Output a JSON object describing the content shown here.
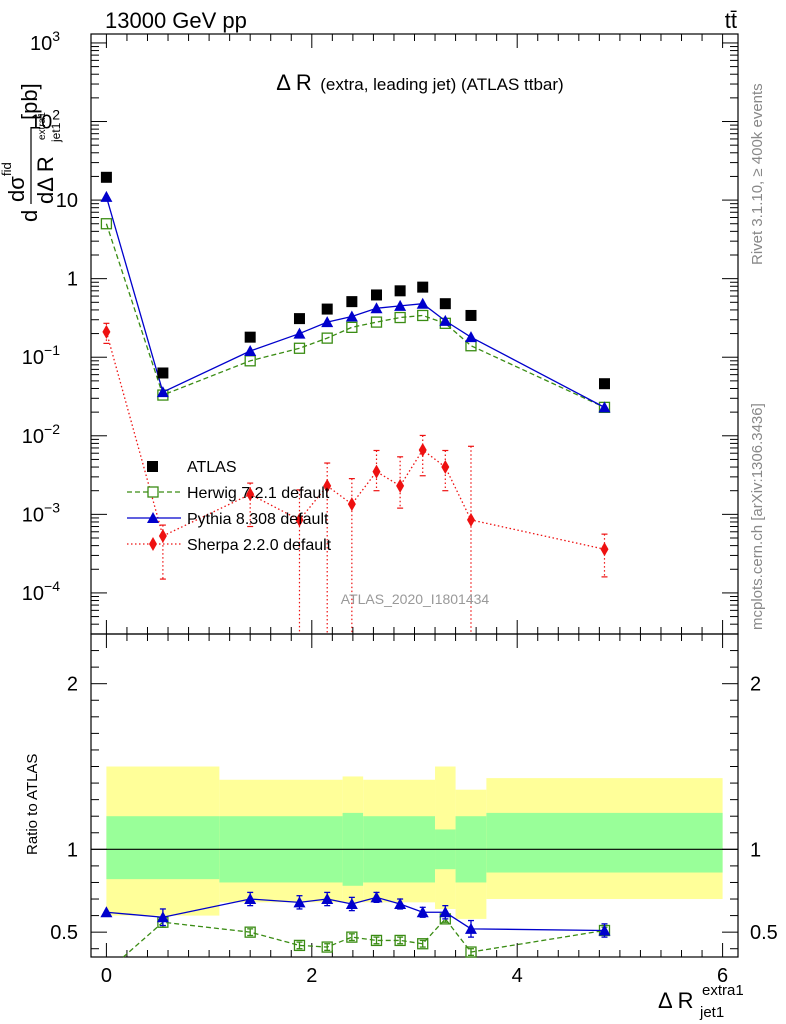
{
  "header": {
    "energy_label": "13000 GeV pp",
    "process_label": "tt̄"
  },
  "main_panel": {
    "title_main": "Δ R",
    "title_detail": "(extra, leading jet) (ATLAS ttbar)",
    "ylabel": "dσ^fid / dΔ R_jet1^extra1 [pb]",
    "ylabel_parts": {
      "d1": "d",
      "sigma": "dσ",
      "sigma_sup": "fid",
      "d2": "dΔ R",
      "sub": "jet1",
      "sup": "extra1",
      "unit": "[pb]"
    },
    "analysis_label": "ATLAS_2020_I1801434",
    "side_label_top": "Rivet 3.1.10, ≥ 400k events",
    "side_label_bottom": "mcplots.cern.ch [arXiv:1306.3436]"
  },
  "ratio_panel": {
    "ylabel": "Ratio to ATLAS"
  },
  "xaxis": {
    "label_main": "Δ R",
    "label_sub": "jet1",
    "label_sup": "extra1"
  },
  "legend": {
    "placement": "lower-left",
    "entries": [
      "ATLAS",
      "Herwig 7.2.1 default",
      "Pythia 8.308 default",
      "Sherpa 2.2.0 default"
    ]
  },
  "colors": {
    "data": "#000000",
    "herwig": "#3a8c13",
    "pythia": "#0000cc",
    "sherpa": "#ee1111",
    "band_inner": "#99ff99",
    "band_outer": "#ffff99",
    "analysis_label": "#999999",
    "side_label": "#888888"
  },
  "chart_data": {
    "type": "scatter",
    "x": [
      0.0,
      0.55,
      1.4,
      1.88,
      2.15,
      2.39,
      2.63,
      2.86,
      3.08,
      3.3,
      3.55,
      4.85
    ],
    "xlim": [
      -0.15,
      6.15
    ],
    "xticks": [
      0,
      2,
      4,
      6
    ],
    "main": {
      "yscale": "log",
      "ylim": [
        3e-05,
        1300
      ],
      "ytick_labels": [
        {
          "v": 0.0001,
          "base": "10",
          "exp": "−4"
        },
        {
          "v": 0.001,
          "base": "10",
          "exp": "−3"
        },
        {
          "v": 0.01,
          "base": "10",
          "exp": "−2"
        },
        {
          "v": 0.1,
          "base": "10",
          "exp": "−1"
        },
        {
          "v": 1,
          "base": "1",
          "exp": ""
        },
        {
          "v": 10,
          "base": "10",
          "exp": ""
        },
        {
          "v": 100,
          "base": "10",
          "exp": "2"
        },
        {
          "v": 1000,
          "base": "10",
          "exp": "3"
        }
      ],
      "series": [
        {
          "name": "ATLAS",
          "style": "square",
          "values": [
            19.5,
            0.063,
            0.18,
            0.31,
            0.41,
            0.51,
            0.62,
            0.7,
            0.78,
            0.48,
            0.34,
            0.046
          ]
        },
        {
          "name": "Herwig 7.2.1 default",
          "style": "open-square-dashed",
          "values": [
            5.0,
            0.033,
            0.09,
            0.13,
            0.175,
            0.24,
            0.28,
            0.32,
            0.34,
            0.27,
            0.14,
            0.023
          ]
        },
        {
          "name": "Pythia 8.308 default",
          "style": "triangle-solid",
          "values": [
            11.0,
            0.036,
            0.12,
            0.2,
            0.28,
            0.33,
            0.42,
            0.45,
            0.48,
            0.29,
            0.18,
            0.023
          ]
        },
        {
          "name": "Sherpa 2.2.0 default",
          "style": "diamond-dotted",
          "values": [
            0.21,
            0.00053,
            0.0018,
            0.00085,
            0.0023,
            0.00135,
            0.0035,
            0.0023,
            0.0066,
            0.004,
            0.00085,
            0.00036
          ],
          "err_lo": [
            0.06,
            0.00038,
            0.0011,
            0.00085,
            0.0023,
            0.00135,
            0.0015,
            0.0011,
            0.0035,
            0.002,
            0.00085,
            0.0002
          ],
          "err_hi": [
            0.06,
            0.0002,
            0.0007,
            0.0012,
            0.0022,
            0.0015,
            0.003,
            0.0031,
            0.0035,
            0.0025,
            0.0065,
            0.0002
          ]
        }
      ]
    },
    "ratio": {
      "yscale": "linear",
      "ylim": [
        0.35,
        2.3
      ],
      "yticks": [
        0.5,
        1,
        2
      ],
      "ytick_labels": [
        "0.5",
        "1",
        "2"
      ],
      "bands": [
        {
          "x0": 0.0,
          "x1": 1.1,
          "inner": [
            0.82,
            1.2
          ],
          "outer": [
            0.6,
            1.5
          ]
        },
        {
          "x0": 1.1,
          "x1": 2.3,
          "inner": [
            0.8,
            1.2
          ],
          "outer": [
            0.68,
            1.42
          ]
        },
        {
          "x0": 2.3,
          "x1": 2.5,
          "inner": [
            0.78,
            1.22
          ],
          "outer": [
            0.68,
            1.44
          ]
        },
        {
          "x0": 2.5,
          "x1": 3.2,
          "inner": [
            0.8,
            1.2
          ],
          "outer": [
            0.68,
            1.42
          ]
        },
        {
          "x0": 3.2,
          "x1": 3.4,
          "inner": [
            0.88,
            1.12
          ],
          "outer": [
            0.64,
            1.5
          ]
        },
        {
          "x0": 3.4,
          "x1": 3.7,
          "inner": [
            0.8,
            1.2
          ],
          "outer": [
            0.58,
            1.36
          ]
        },
        {
          "x0": 3.7,
          "x1": 6.0,
          "inner": [
            0.86,
            1.22
          ],
          "outer": [
            0.7,
            1.43
          ]
        }
      ],
      "series": [
        {
          "name": "Herwig 7.2.1 default",
          "values": [
            0.26,
            0.56,
            0.5,
            0.42,
            0.41,
            0.47,
            0.45,
            0.45,
            0.43,
            0.58,
            0.38,
            0.51
          ],
          "err": [
            0.0,
            0.03,
            0.02,
            0.02,
            0.02,
            0.02,
            0.02,
            0.02,
            0.02,
            0.02,
            0.02,
            0.02
          ]
        },
        {
          "name": "Pythia 8.308 default",
          "values": [
            0.62,
            0.59,
            0.7,
            0.68,
            0.7,
            0.67,
            0.71,
            0.67,
            0.62,
            0.62,
            0.52,
            0.51
          ],
          "err": [
            0.0,
            0.05,
            0.04,
            0.04,
            0.04,
            0.04,
            0.03,
            0.03,
            0.03,
            0.04,
            0.05,
            0.04
          ]
        }
      ]
    }
  }
}
